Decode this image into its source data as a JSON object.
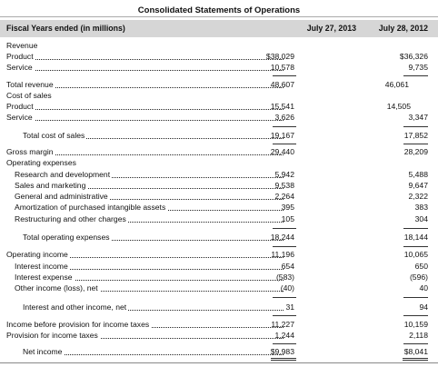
{
  "title": "Consolidated Statements of Operations",
  "header": {
    "label": "Fiscal Years ended (in millions)",
    "col1": "July 27, 2013",
    "col2": "July 28, 2012"
  },
  "rows": [
    {
      "label": "Revenue"
    },
    {
      "label": "Product",
      "v1": "$38,029",
      "v2": "$36,326"
    },
    {
      "label": "Service",
      "v1": "10,578",
      "v2": "9,735"
    },
    {
      "label": "Total revenue",
      "v1": "48,607",
      "v2": "46,061"
    },
    {
      "label": "Cost of sales"
    },
    {
      "label": "Product",
      "v1": "15,541",
      "v2": "14,505"
    },
    {
      "label": "Service",
      "v1": "3,626",
      "v2": "3,347"
    },
    {
      "label": "Total cost of sales",
      "v1": "19,167",
      "v2": "17,852"
    },
    {
      "label": "Gross margin",
      "v1": "29,440",
      "v2": "28,209"
    },
    {
      "label": "Operating expenses"
    },
    {
      "label": "Research and development",
      "v1": "5,942",
      "v2": "5,488"
    },
    {
      "label": "Sales and marketing",
      "v1": "9,538",
      "v2": "9,647"
    },
    {
      "label": "General and administrative",
      "v1": "2,264",
      "v2": "2,322"
    },
    {
      "label": "Amortization of purchased intangible assets",
      "v1": "395",
      "v2": "383"
    },
    {
      "label": "Restructuring and other charges",
      "v1": "105",
      "v2": "304"
    },
    {
      "label": "Total operating expenses",
      "v1": "18,244",
      "v2": "18,144"
    },
    {
      "label": "Operating income",
      "v1": "11,196",
      "v2": "10,065"
    },
    {
      "label": "Interest income",
      "v1": "654",
      "v2": "650"
    },
    {
      "label": "Interest expense",
      "v1": "(583)",
      "v2": "(596)"
    },
    {
      "label": "Other income (loss), net",
      "v1": "(40)",
      "v2": "40"
    },
    {
      "label": "Interest and other income, net",
      "v1": "31",
      "v2": "94"
    },
    {
      "label": "Income before provision for income taxes",
      "v1": "11,227",
      "v2": "10,159"
    },
    {
      "label": "Provision for income taxes",
      "v1": "1,244",
      "v2": "2,118"
    },
    {
      "label": "Net income",
      "v1": "$9,983",
      "v2": "$8,041"
    }
  ]
}
